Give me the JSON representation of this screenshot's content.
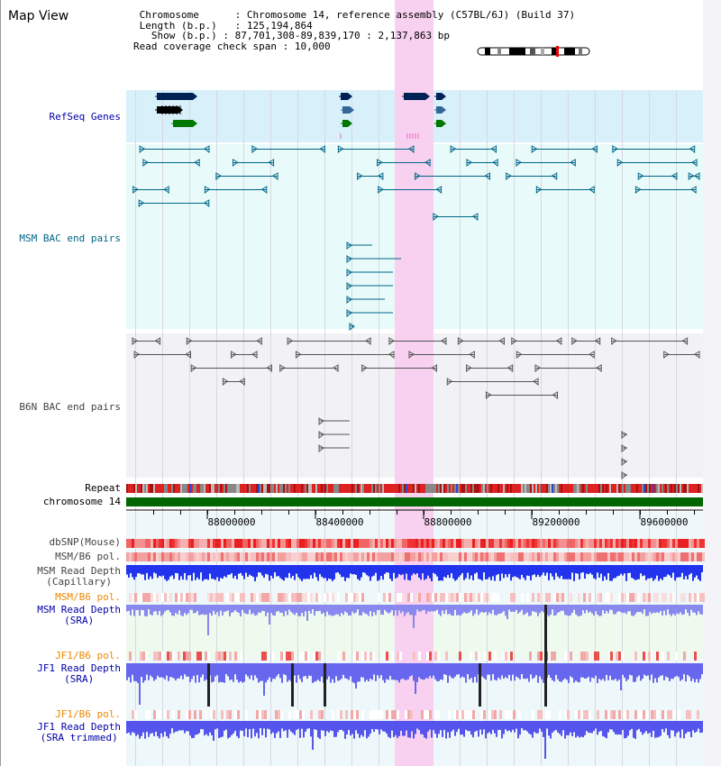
{
  "title": "Map View",
  "info": {
    "chromosome_label": "Chromosome",
    "chromosome_value": "Chromosome 14, reference assembly (C57BL/6J) (Build 37)",
    "length_label": "Length (b.p.)",
    "length_value": "125,194,864",
    "show_label": "Show (b.p.)",
    "show_value": "87,701,308-89,839,170 : 2,137,863 bp",
    "coverage_label": "Read coverage check span",
    "coverage_value": "10,000"
  },
  "tracks": {
    "refseq": {
      "label": "RefSeq Genes"
    },
    "msm_bac": {
      "label": "MSM BAC end pairs"
    },
    "b6n_bac": {
      "label": "B6N BAC end pairs"
    },
    "repeat": {
      "label": "Repeat"
    },
    "chromosome": {
      "label": "chromosome 14"
    },
    "dbsnp": {
      "label": "dbSNP(Mouse)"
    },
    "msm_b6_pol": {
      "label": "MSM/B6 pol."
    },
    "msm_depth_cap": {
      "label1": "MSM Read Depth",
      "label2": "(Capillary)"
    },
    "msm_b6_pol2": {
      "label": "MSM/B6 pol."
    },
    "msm_depth_sra": {
      "label1": "MSM Read Depth",
      "label2": "(SRA)"
    },
    "jf1_pol": {
      "label": "JF1/B6 pol."
    },
    "jf1_depth_sra": {
      "label1": "JF1 Read Depth",
      "label2": "(SRA)"
    },
    "jf1_pol2": {
      "label": "JF1/B6 pol."
    },
    "jf1_depth_trim": {
      "label1": "JF1 Read Depth",
      "label2": "(SRA trimmed)"
    }
  },
  "axis": {
    "ticks": [
      "88000000",
      "88400000",
      "88800000",
      "89200000",
      "89600000"
    ]
  },
  "colors": {
    "highlight": "#f8d0f0",
    "refseq_bg": "#d8f0fa",
    "msm_bg": "#e8fafa",
    "b6n_bg": "#f2f2f6",
    "chrom_bar": "#006600",
    "msm_color": "#006688",
    "b6n_color": "#555555",
    "label_blue": "#0000aa",
    "label_orange": "#ee8800",
    "label_teal": "#006688",
    "label_gray": "#444444"
  }
}
